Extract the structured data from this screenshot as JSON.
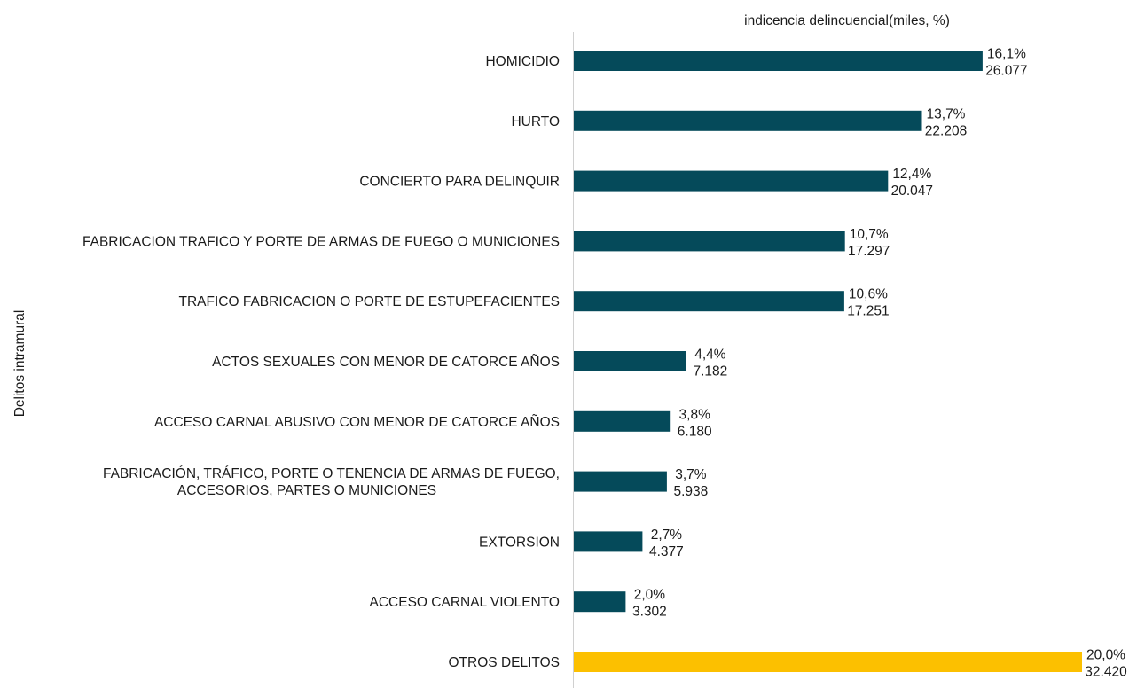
{
  "chart_data": {
    "type": "bar",
    "orientation": "horizontal",
    "title": "indicencia delincuencial(miles, %)",
    "ylabel": "Delitos intramural",
    "xlabel": "",
    "grid": false,
    "colors": {
      "main": "#054a5a",
      "highlight": "#fcc000"
    },
    "categories": [
      [
        "HOMICIDIO"
      ],
      [
        "HURTO"
      ],
      [
        "CONCIERTO PARA DELINQUIR"
      ],
      [
        "FABRICACION TRAFICO Y PORTE DE ARMAS DE FUEGO O MUNICIONES"
      ],
      [
        "TRAFICO FABRICACION O PORTE DE ESTUPEFACIENTES"
      ],
      [
        "ACTOS SEXUALES CON MENOR DE CATORCE AÑOS"
      ],
      [
        "ACCESO CARNAL ABUSIVO CON MENOR DE CATORCE AÑOS"
      ],
      [
        "FABRICACIÓN, TRÁFICO, PORTE O TENENCIA DE ARMAS DE FUEGO,",
        "ACCESORIOS, PARTES O MUNICIONES"
      ],
      [
        "EXTORSION"
      ],
      [
        "ACCESO CARNAL VIOLENTO"
      ],
      [
        "OTROS DELITOS"
      ]
    ],
    "values": [
      26077,
      22208,
      20047,
      17297,
      17251,
      7182,
      6180,
      5938,
      4377,
      3302,
      32420
    ],
    "percent_labels": [
      "16,1%",
      "13,7%",
      "12,4%",
      "10,7%",
      "10,6%",
      "4,4%",
      "3,8%",
      "3,7%",
      "2,7%",
      "2,0%",
      "20,0%"
    ],
    "value_labels": [
      "26.077",
      "22.208",
      "20.047",
      "17.297",
      "17.251",
      "7.182",
      "6.180",
      "5.938",
      "4.377",
      "3.302",
      "32.420"
    ],
    "highlight_index": 10,
    "xlim": [
      0,
      32420
    ]
  }
}
